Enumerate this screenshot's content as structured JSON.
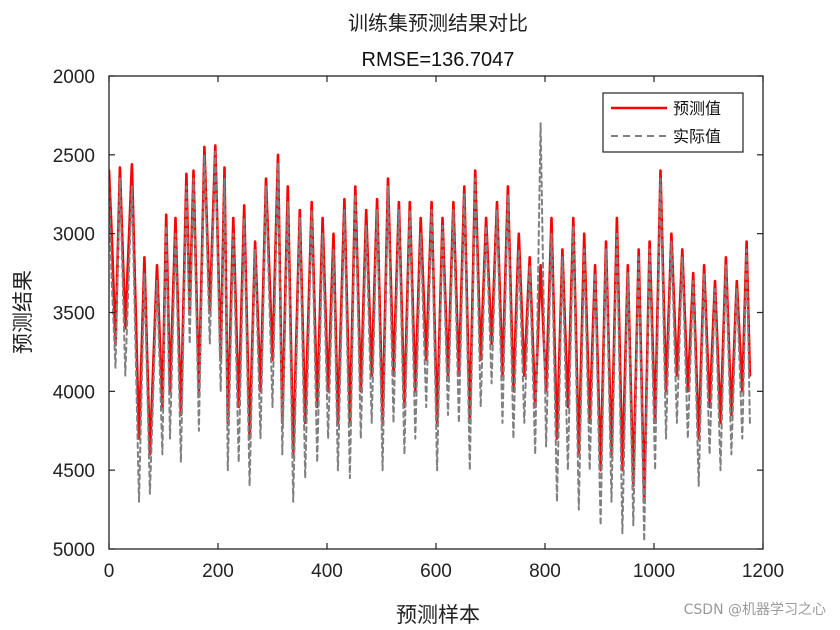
{
  "chart_data": {
    "type": "line",
    "title": "训练集预测结果对比",
    "subtitle": "RMSE=136.7047",
    "xlabel": "预测样本",
    "ylabel": "预测结果",
    "xlim": [
      0,
      1200
    ],
    "ylim": [
      2000,
      5000
    ],
    "y_reversed": true,
    "x_ticks": [
      0,
      200,
      400,
      600,
      800,
      1000,
      1200
    ],
    "y_ticks": [
      2000,
      2500,
      3000,
      3500,
      4000,
      4500,
      5000
    ],
    "grid": false,
    "legend_position": "top-right",
    "colors": {
      "predicted": "#ff0000",
      "actual": "#808080"
    },
    "series_note": "approximate oscillating series; peaks/troughs read from the figure",
    "series": [
      {
        "name": "预测值",
        "style": "solid",
        "x": [
          0,
          5,
          12,
          20,
          30,
          42,
          55,
          65,
          75,
          88,
          98,
          105,
          112,
          122,
          132,
          142,
          148,
          155,
          165,
          175,
          185,
          195,
          205,
          212,
          218,
          228,
          238,
          248,
          258,
          268,
          278,
          288,
          300,
          310,
          318,
          328,
          338,
          350,
          360,
          372,
          382,
          392,
          402,
          412,
          420,
          432,
          442,
          452,
          462,
          472,
          482,
          492,
          502,
          512,
          522,
          532,
          542,
          552,
          562,
          572,
          582,
          592,
          602,
          612,
          622,
          632,
          642,
          652,
          662,
          672,
          682,
          692,
          702,
          712,
          722,
          732,
          742,
          752,
          762,
          772,
          782,
          792,
          802,
          812,
          822,
          832,
          842,
          852,
          862,
          872,
          882,
          892,
          902,
          912,
          922,
          932,
          942,
          952,
          962,
          972,
          982,
          992,
          1002,
          1012,
          1022,
          1032,
          1042,
          1052,
          1062,
          1072,
          1082,
          1092,
          1102,
          1112,
          1122,
          1132,
          1142,
          1152,
          1162,
          1170,
          1176
        ],
        "values": [
          2600,
          3000,
          3700,
          2580,
          3600,
          2560,
          4300,
          3150,
          4400,
          3200,
          4100,
          2880,
          4000,
          2900,
          4150,
          2620,
          3500,
          2600,
          4000,
          2450,
          3500,
          2440,
          3800,
          2580,
          4200,
          2900,
          4100,
          2820,
          4300,
          3050,
          4000,
          2650,
          3800,
          2500,
          4200,
          2700,
          4400,
          2850,
          4200,
          2800,
          4100,
          2900,
          4000,
          3000,
          4200,
          2780,
          4200,
          2700,
          4000,
          2850,
          3900,
          2780,
          4200,
          2650,
          3900,
          2800,
          4100,
          2800,
          4000,
          2900,
          3800,
          2800,
          4200,
          2900,
          3900,
          2800,
          3900,
          2700,
          4200,
          2600,
          3800,
          2900,
          3700,
          2800,
          3900,
          2700,
          4000,
          3000,
          3900,
          3150,
          4100,
          3200,
          4000,
          2900,
          4300,
          3100,
          4100,
          2900,
          4400,
          3000,
          4200,
          3200,
          4500,
          3050,
          4400,
          2900,
          4500,
          3200,
          4600,
          3100,
          4700,
          3050,
          4200,
          2600,
          4000,
          3000,
          3900,
          3100,
          4000,
          3250,
          4300,
          3200,
          4100,
          3300,
          4200,
          3150,
          4150,
          3300,
          4000,
          3050,
          3900
        ]
      },
      {
        "name": "实际值",
        "style": "dashed",
        "x": [
          0,
          5,
          12,
          20,
          30,
          42,
          55,
          65,
          75,
          88,
          98,
          105,
          112,
          122,
          132,
          142,
          148,
          155,
          165,
          175,
          185,
          195,
          205,
          212,
          218,
          228,
          238,
          248,
          258,
          268,
          278,
          288,
          300,
          310,
          318,
          328,
          338,
          350,
          360,
          372,
          382,
          392,
          402,
          412,
          420,
          432,
          442,
          452,
          462,
          472,
          482,
          492,
          502,
          512,
          522,
          532,
          542,
          552,
          562,
          572,
          582,
          592,
          602,
          612,
          622,
          632,
          642,
          652,
          662,
          672,
          682,
          692,
          702,
          712,
          722,
          732,
          742,
          752,
          762,
          772,
          782,
          792,
          802,
          812,
          822,
          832,
          842,
          852,
          862,
          872,
          882,
          892,
          902,
          912,
          922,
          932,
          942,
          952,
          962,
          972,
          982,
          992,
          1002,
          1012,
          1022,
          1032,
          1042,
          1052,
          1062,
          1072,
          1082,
          1092,
          1102,
          1112,
          1122,
          1132,
          1142,
          1152,
          1162,
          1170,
          1176
        ],
        "values": [
          2680,
          3300,
          3850,
          2650,
          3900,
          2700,
          4700,
          3250,
          4650,
          3300,
          4400,
          2950,
          4300,
          3000,
          4450,
          2700,
          3700,
          2650,
          4250,
          2500,
          3700,
          2480,
          4000,
          2650,
          4500,
          3000,
          4450,
          2900,
          4600,
          3100,
          4300,
          2700,
          4100,
          2550,
          4400,
          2800,
          4700,
          2900,
          4550,
          2850,
          4450,
          3000,
          4300,
          3100,
          4500,
          2850,
          4550,
          2750,
          4300,
          2950,
          4200,
          2850,
          4500,
          2700,
          4200,
          2850,
          4400,
          2850,
          4300,
          3000,
          4100,
          2850,
          4500,
          2950,
          4150,
          2850,
          4200,
          2750,
          4500,
          2650,
          4100,
          2950,
          3950,
          2850,
          4200,
          2750,
          4300,
          3100,
          4200,
          3200,
          4400,
          2300,
          4350,
          3000,
          4700,
          3150,
          4500,
          2950,
          4750,
          3100,
          4500,
          3250,
          4850,
          3100,
          4700,
          3000,
          4900,
          3250,
          4850,
          3150,
          4950,
          3100,
          4500,
          2650,
          4300,
          3050,
          4200,
          3150,
          4300,
          3300,
          4600,
          3250,
          4400,
          3350,
          4500,
          3200,
          4400,
          3350,
          4300,
          3100,
          4200
        ]
      }
    ]
  },
  "watermark": "CSDN @机器学习之心"
}
